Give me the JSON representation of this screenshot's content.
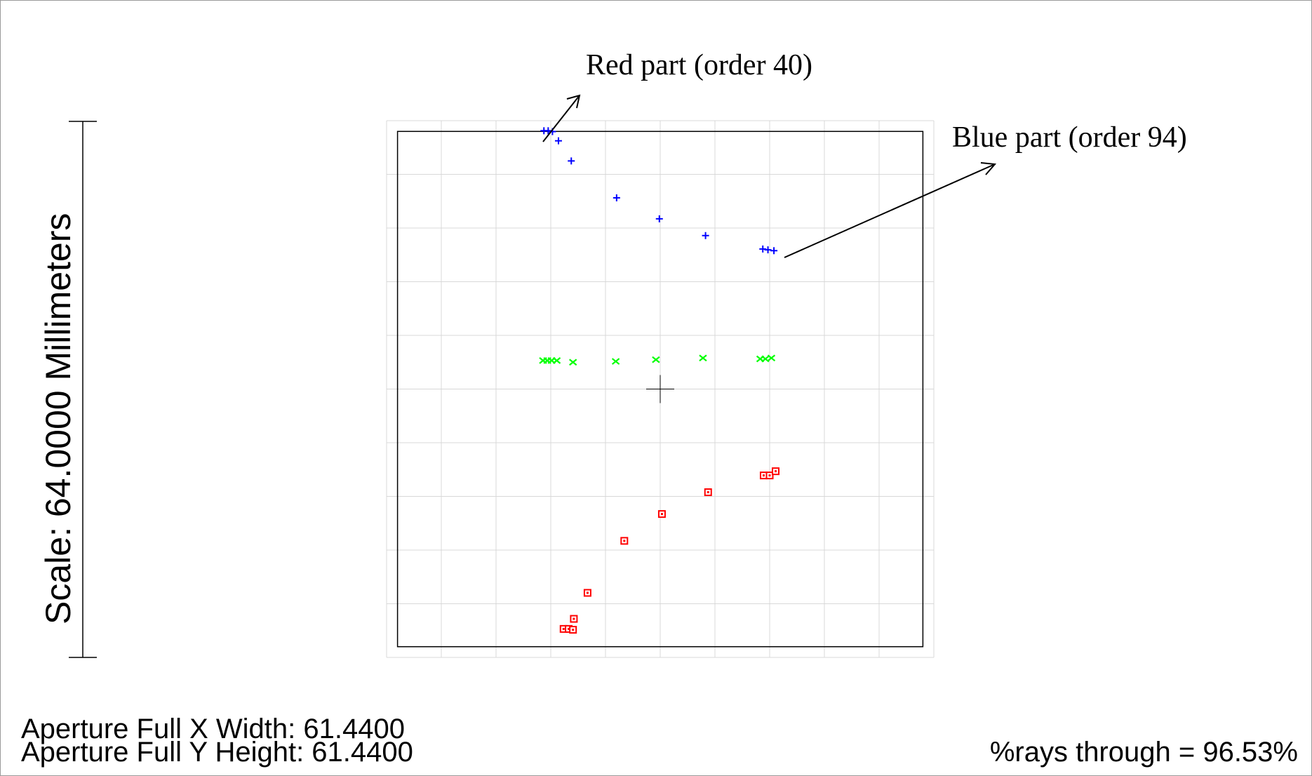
{
  "annotations": {
    "red_label": "Red part  (order 40)",
    "blue_label": "Blue part  (order 94)"
  },
  "scale_label": "Scale:  64.0000 Millimeters",
  "aperture": {
    "x_line": "Aperture Full X Width: 61.4400",
    "y_line": "Aperture Full Y Height: 61.4400"
  },
  "rays_through": "%rays through = 96.53%",
  "colors": {
    "blue_series": "#0000ff",
    "green_series": "#00ff00",
    "red_series": "#ff0000",
    "grid": "#d8d8d8",
    "border": "#000000"
  },
  "chart_data": {
    "type": "scatter",
    "grid": true,
    "grid_divisions": 10,
    "xlim": [
      -32,
      32
    ],
    "ylim": [
      -32,
      32
    ],
    "aperture_box": [
      -30.72,
      30.72
    ],
    "series": [
      {
        "marker": "plus",
        "color": "#0000ff",
        "points": [
          [
            -13.6,
            30.8
          ],
          [
            -13.1,
            30.8
          ],
          [
            -12.6,
            30.7
          ],
          [
            -11.9,
            29.6
          ],
          [
            -10.4,
            27.2
          ],
          [
            -5.1,
            22.8
          ],
          [
            -0.1,
            20.3
          ],
          [
            5.3,
            18.3
          ],
          [
            12.0,
            16.7
          ],
          [
            12.6,
            16.6
          ],
          [
            13.3,
            16.5
          ]
        ]
      },
      {
        "marker": "x",
        "color": "#00ff00",
        "points": [
          [
            -13.7,
            3.4
          ],
          [
            -13.2,
            3.4
          ],
          [
            -12.7,
            3.4
          ],
          [
            -12.1,
            3.4
          ],
          [
            -10.2,
            3.2
          ],
          [
            -5.2,
            3.3
          ],
          [
            -0.5,
            3.5
          ],
          [
            5.0,
            3.7
          ],
          [
            11.7,
            3.6
          ],
          [
            12.3,
            3.6
          ],
          [
            13.0,
            3.7
          ]
        ]
      },
      {
        "marker": "square",
        "color": "#ff0000",
        "points": [
          [
            -11.3,
            -28.6
          ],
          [
            -10.7,
            -28.6
          ],
          [
            -10.2,
            -28.7
          ],
          [
            -10.1,
            -27.4
          ],
          [
            -8.5,
            -24.3
          ],
          [
            -4.2,
            -18.1
          ],
          [
            0.2,
            -14.9
          ],
          [
            5.6,
            -12.3
          ],
          [
            12.1,
            -10.3
          ],
          [
            12.8,
            -10.3
          ],
          [
            13.5,
            -9.8
          ]
        ]
      }
    ]
  }
}
